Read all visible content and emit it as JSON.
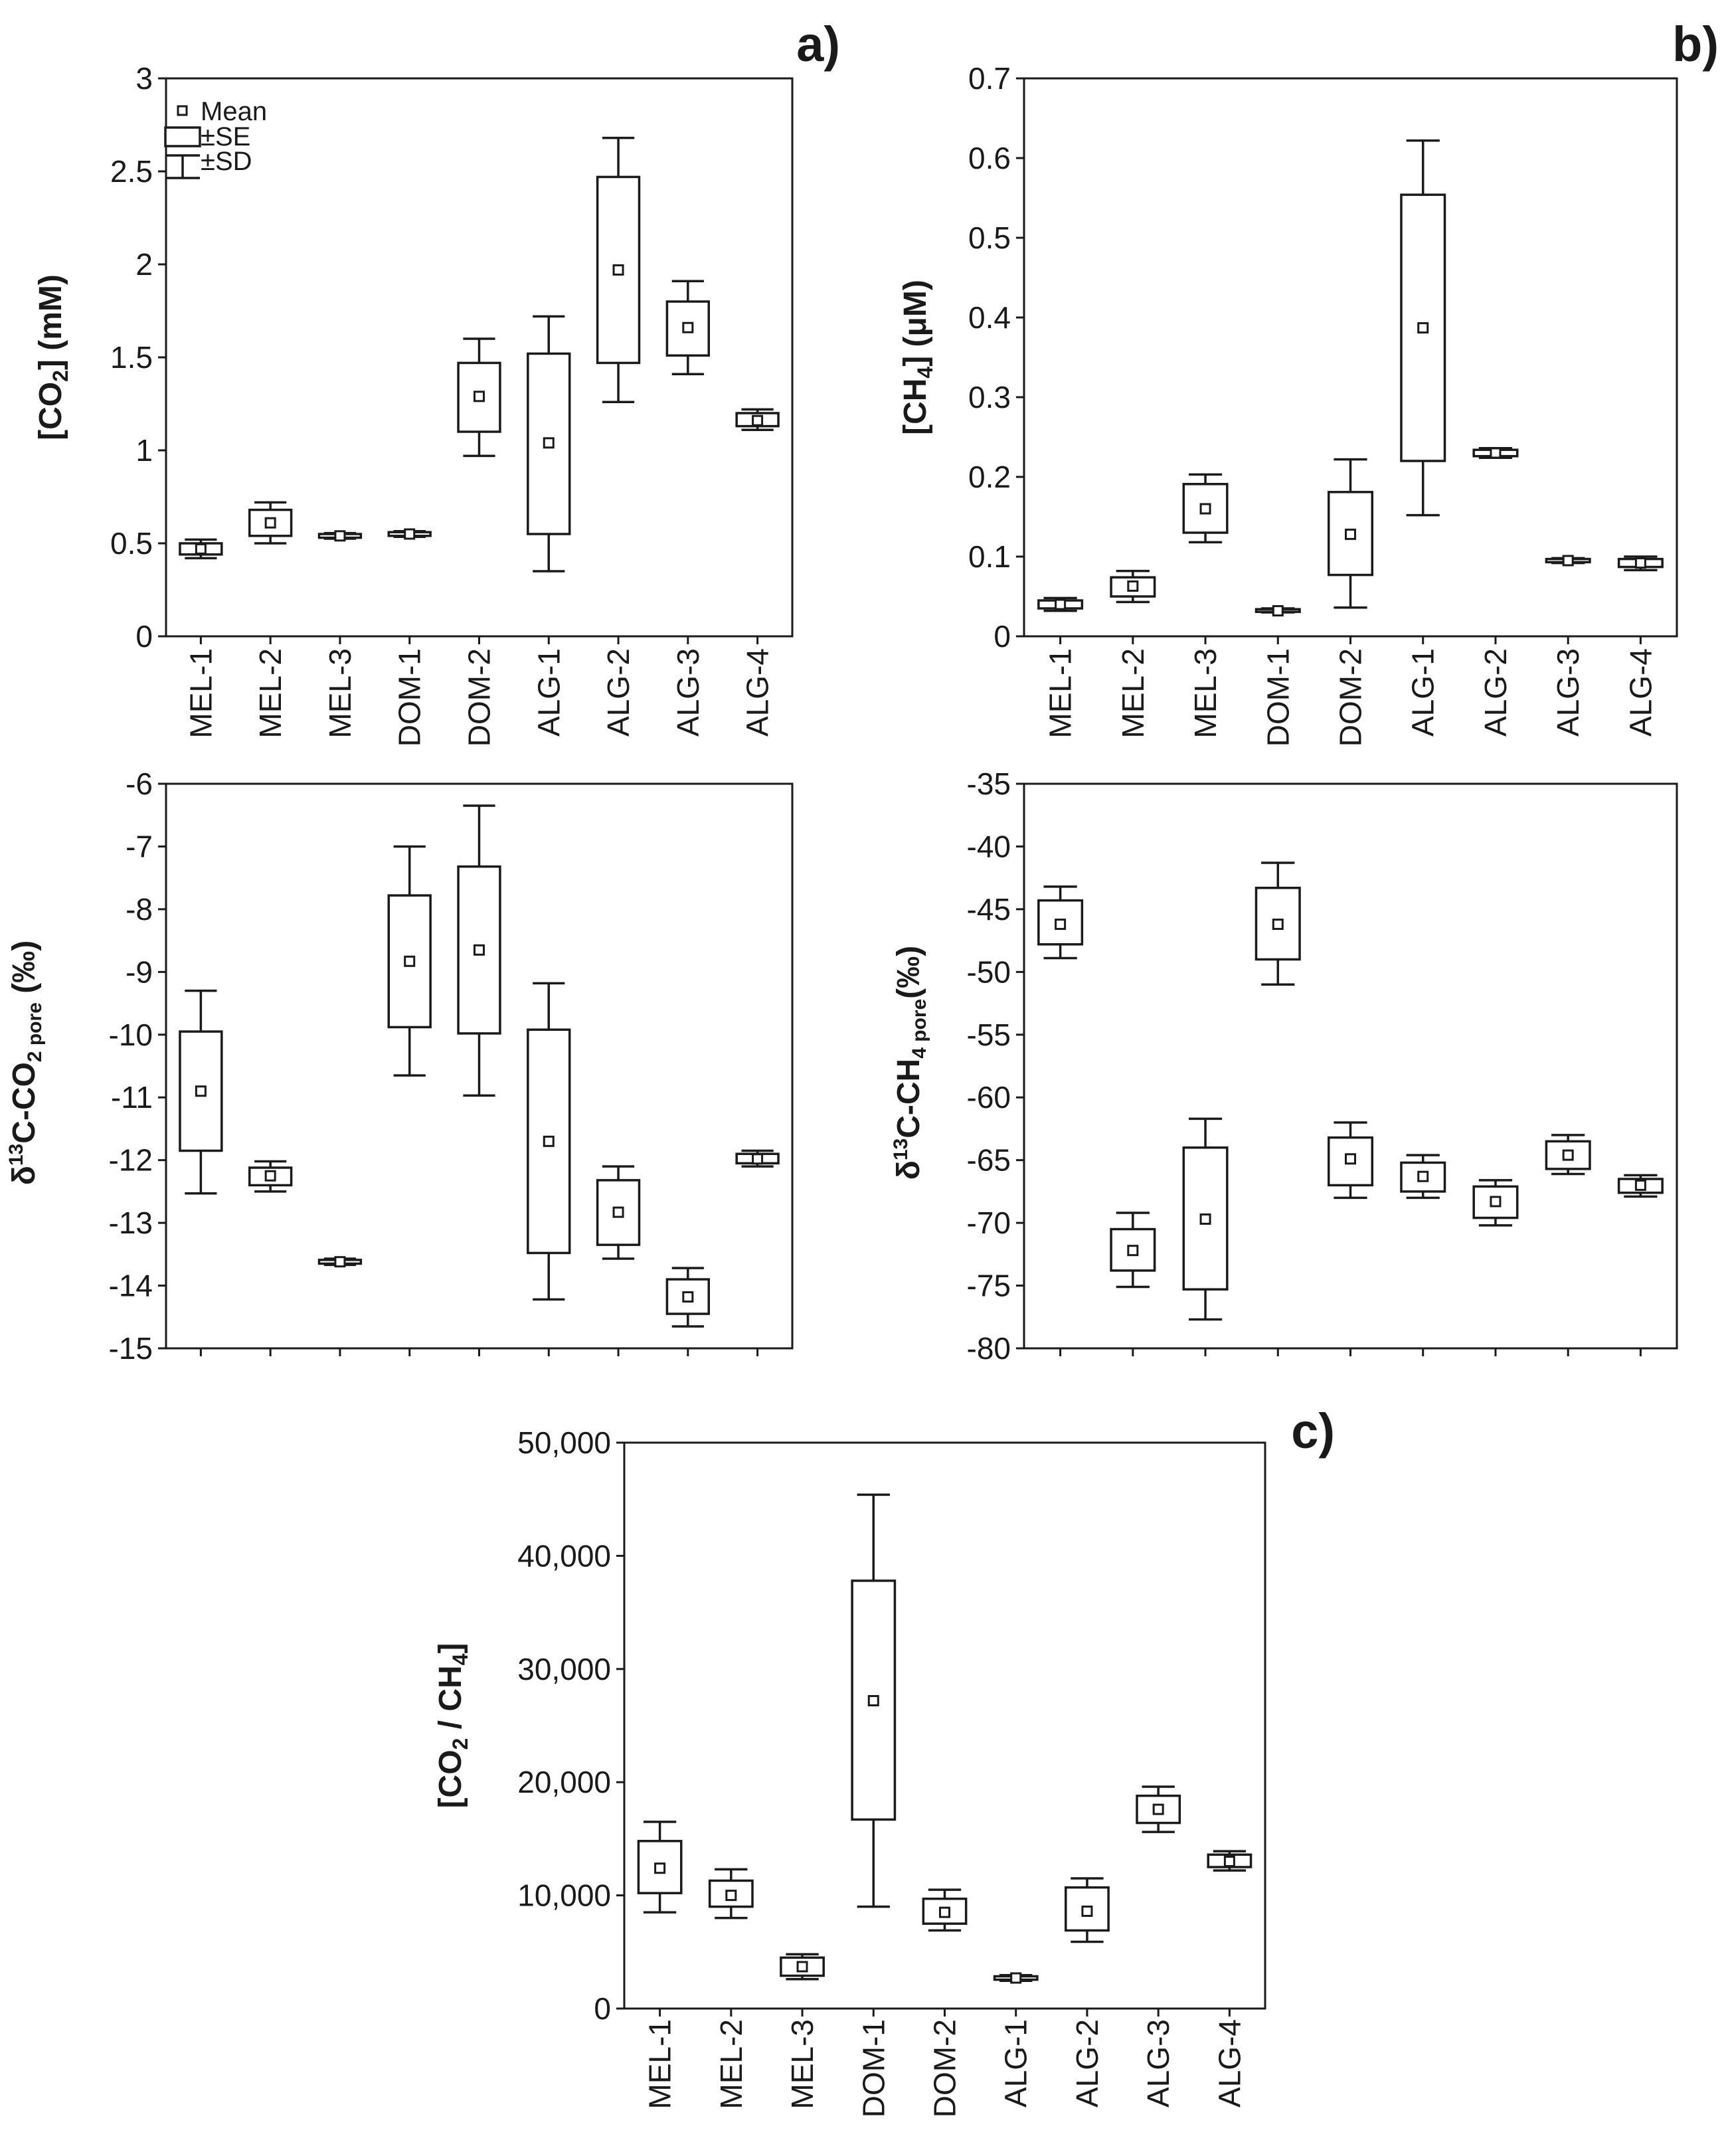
{
  "legend": {
    "mean": "Mean",
    "se": "±SE",
    "sd": "±SD"
  },
  "chart_data": [
    {
      "id": "co2",
      "panel_label": "a)",
      "type": "box",
      "ylabel": {
        "pre": "[CO",
        "sub": "2",
        "post": "] (mM)"
      },
      "ylim": [
        0,
        3
      ],
      "yticks": [
        "0",
        "0.5",
        "1",
        "1.5",
        "2",
        "2.5",
        "3"
      ],
      "categories": [
        "MEL-1",
        "MEL-2",
        "MEL-3",
        "DOM-1",
        "DOM-2",
        "ALG-1",
        "ALG-2",
        "ALG-3",
        "ALG-4"
      ],
      "mean": [
        0.47,
        0.61,
        0.54,
        0.55,
        1.29,
        1.04,
        1.97,
        1.66,
        1.16
      ],
      "se_low": [
        0.44,
        0.54,
        0.53,
        0.54,
        1.1,
        0.55,
        1.47,
        1.51,
        1.13
      ],
      "se_high": [
        0.5,
        0.68,
        0.55,
        0.56,
        1.47,
        1.52,
        2.47,
        1.8,
        1.2
      ],
      "sd_low": [
        0.42,
        0.5,
        0.525,
        0.535,
        0.97,
        0.35,
        1.26,
        1.41,
        1.11
      ],
      "sd_high": [
        0.52,
        0.72,
        0.555,
        0.565,
        1.6,
        1.72,
        2.68,
        1.91,
        1.22
      ]
    },
    {
      "id": "ch4",
      "panel_label": "b)",
      "type": "box",
      "ylabel": {
        "pre": "[CH",
        "sub": "4",
        "post": "] (μM)"
      },
      "ylim": [
        0,
        0.7
      ],
      "yticks": [
        "0",
        "0.1",
        "0.2",
        "0.3",
        "0.4",
        "0.5",
        "0.6",
        "0.7"
      ],
      "categories": [
        "MEL-1",
        "MEL-2",
        "MEL-3",
        "DOM-1",
        "DOM-2",
        "ALG-1",
        "ALG-2",
        "ALG-3",
        "ALG-4"
      ],
      "mean": [
        0.04,
        0.063,
        0.16,
        0.032,
        0.128,
        0.387,
        0.23,
        0.095,
        0.092
      ],
      "se_low": [
        0.035,
        0.05,
        0.13,
        0.031,
        0.077,
        0.22,
        0.226,
        0.093,
        0.087
      ],
      "se_high": [
        0.045,
        0.074,
        0.191,
        0.034,
        0.181,
        0.554,
        0.234,
        0.097,
        0.097
      ],
      "sd_low": [
        0.032,
        0.043,
        0.118,
        0.03,
        0.036,
        0.152,
        0.224,
        0.092,
        0.083
      ],
      "sd_high": [
        0.048,
        0.082,
        0.203,
        0.035,
        0.222,
        0.622,
        0.236,
        0.098,
        0.1
      ]
    },
    {
      "id": "d13co2",
      "type": "box",
      "ylabel": {
        "pre": "δ",
        "sup": "13",
        "mid": "C-CO",
        "sub": "2 pore",
        "post": " (‰)"
      },
      "ylim": [
        -15,
        -6
      ],
      "yticks": [
        "-15",
        "-14",
        "-13",
        "-12",
        "-11",
        "-10",
        "-9",
        "-8",
        "-7",
        "-6"
      ],
      "categories": [
        "MEL-1",
        "MEL-2",
        "MEL-3",
        "DOM-1",
        "DOM-2",
        "ALG-1",
        "ALG-2",
        "ALG-3",
        "ALG-4"
      ],
      "mean": [
        -10.9,
        -12.25,
        -13.62,
        -8.83,
        -8.65,
        -11.7,
        -12.83,
        -14.18,
        -11.98
      ],
      "se_low": [
        -11.85,
        -12.4,
        -13.65,
        -9.88,
        -9.98,
        -13.48,
        -13.35,
        -14.45,
        -12.05
      ],
      "se_high": [
        -9.95,
        -12.12,
        -13.59,
        -7.78,
        -7.32,
        -9.92,
        -12.32,
        -13.9,
        -11.9
      ],
      "sd_low": [
        -12.53,
        -12.5,
        -13.67,
        -10.65,
        -10.97,
        -14.22,
        -13.57,
        -14.65,
        -12.1
      ],
      "sd_high": [
        -9.3,
        -12.02,
        -13.57,
        -7.0,
        -6.35,
        -9.18,
        -12.1,
        -13.72,
        -11.85
      ]
    },
    {
      "id": "d13ch4",
      "type": "box",
      "ylabel": {
        "pre": "δ",
        "sup": "13",
        "mid": "C-CH",
        "sub": "4 pore",
        "post": "(‰)"
      },
      "ylim": [
        -80,
        -35
      ],
      "yticks": [
        "-80",
        "-75",
        "-70",
        "-65",
        "-60",
        "-55",
        "-50",
        "-45",
        "-40",
        "-35"
      ],
      "categories": [
        "MEL-1",
        "MEL-2",
        "MEL-3",
        "DOM-1",
        "DOM-2",
        "ALG-1",
        "ALG-2",
        "ALG-3",
        "ALG-4"
      ],
      "mean": [
        -46.2,
        -72.2,
        -69.7,
        -46.2,
        -64.9,
        -66.3,
        -68.3,
        -64.6,
        -67.0
      ],
      "se_low": [
        -47.8,
        -73.8,
        -75.3,
        -49.0,
        -67.0,
        -67.5,
        -69.6,
        -65.7,
        -67.6
      ],
      "se_high": [
        -44.3,
        -70.5,
        -64.0,
        -43.3,
        -63.2,
        -65.2,
        -67.1,
        -63.5,
        -66.5
      ],
      "sd_low": [
        -48.9,
        -75.1,
        -77.7,
        -51.0,
        -68.0,
        -68.0,
        -70.2,
        -66.1,
        -67.9
      ],
      "sd_high": [
        -43.2,
        -69.2,
        -61.7,
        -41.3,
        -62.0,
        -64.6,
        -66.6,
        -63.0,
        -66.2
      ]
    },
    {
      "id": "ratio",
      "panel_label": "c)",
      "type": "box",
      "ylabel": {
        "pre": "[CO",
        "sub": "2",
        "mid": " / CH",
        "sub2": "4",
        "post": "]"
      },
      "ylim": [
        0,
        50000
      ],
      "yticks": [
        "0",
        "10,000",
        "20,000",
        "30,000",
        "40,000",
        "50,000"
      ],
      "categories": [
        "MEL-1",
        "MEL-2",
        "MEL-3",
        "DOM-1",
        "DOM-2",
        "ALG-1",
        "ALG-2",
        "ALG-3",
        "ALG-4"
      ],
      "mean": [
        12400,
        10000,
        3700,
        27200,
        8500,
        2700,
        8600,
        17600,
        13000
      ],
      "se_low": [
        10200,
        9000,
        2900,
        16700,
        7500,
        2550,
        6900,
        16400,
        12500
      ],
      "se_high": [
        14800,
        11300,
        4500,
        37800,
        9700,
        2850,
        10700,
        18800,
        13600
      ],
      "sd_low": [
        8500,
        8000,
        2600,
        9000,
        6900,
        2450,
        5900,
        15600,
        12200
      ],
      "sd_high": [
        16500,
        12300,
        4800,
        45400,
        10500,
        2950,
        11500,
        19600,
        13900
      ]
    }
  ]
}
